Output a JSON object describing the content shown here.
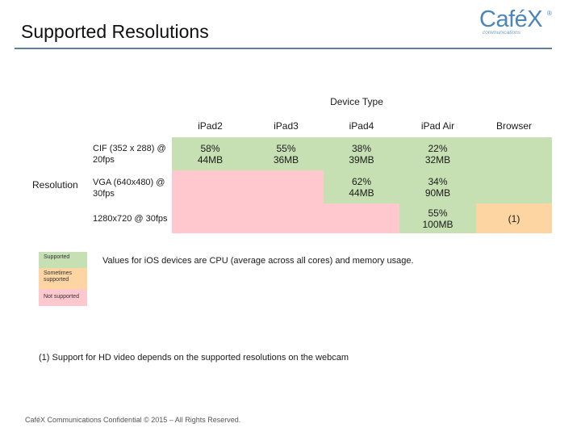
{
  "title": "Supported Resolutions",
  "logo": {
    "word": "Café",
    "x": "X",
    "reg": "®",
    "tagline": "communications"
  },
  "table": {
    "device_type_label": "Device Type",
    "resolution_label": "Resolution",
    "columns": [
      "iPad2",
      "iPad3",
      "iPad4",
      "iPad Air",
      "Browser"
    ],
    "rows": [
      {
        "label": "CIF (352 x 288) @ 20fps",
        "cells": [
          {
            "cpu": "58%",
            "mem": "44MB",
            "status": "supported"
          },
          {
            "cpu": "55%",
            "mem": "36MB",
            "status": "supported"
          },
          {
            "cpu": "38%",
            "mem": "39MB",
            "status": "supported"
          },
          {
            "cpu": "22%",
            "mem": "32MB",
            "status": "supported"
          },
          {
            "cpu": "",
            "mem": "",
            "status": "supported"
          }
        ]
      },
      {
        "label": "VGA (640x480) @ 30fps",
        "cells": [
          {
            "cpu": "",
            "mem": "",
            "status": "not-supported"
          },
          {
            "cpu": "",
            "mem": "",
            "status": "not-supported"
          },
          {
            "cpu": "62%",
            "mem": "44MB",
            "status": "supported"
          },
          {
            "cpu": "34%",
            "mem": "90MB",
            "status": "supported"
          },
          {
            "cpu": "",
            "mem": "",
            "status": "supported"
          }
        ]
      },
      {
        "label": "1280x720 @ 30fps",
        "cells": [
          {
            "cpu": "",
            "mem": "",
            "status": "not-supported"
          },
          {
            "cpu": "",
            "mem": "",
            "status": "not-supported"
          },
          {
            "cpu": "",
            "mem": "",
            "status": "not-supported"
          },
          {
            "cpu": "55%",
            "mem": "100MB",
            "status": "supported"
          },
          {
            "cpu": "(1)",
            "mem": "",
            "status": "sometimes"
          }
        ]
      }
    ]
  },
  "legend": {
    "supported": "Supported",
    "sometimes": "Sometimes supported",
    "not_supported": "Not supported",
    "note": "Values for iOS devices are CPU (average across all cores) and memory usage."
  },
  "footnote": "(1) Support for HD video depends on the supported resolutions on the webcam",
  "confidential": "CaféX Communications Confidential © 2015 – All Rights Reserved.",
  "colors": {
    "supported": "#c6e0b4",
    "sometimes": "#fcd5a3",
    "not_supported": "#ffc7ce",
    "accent": "#4a86b8"
  }
}
